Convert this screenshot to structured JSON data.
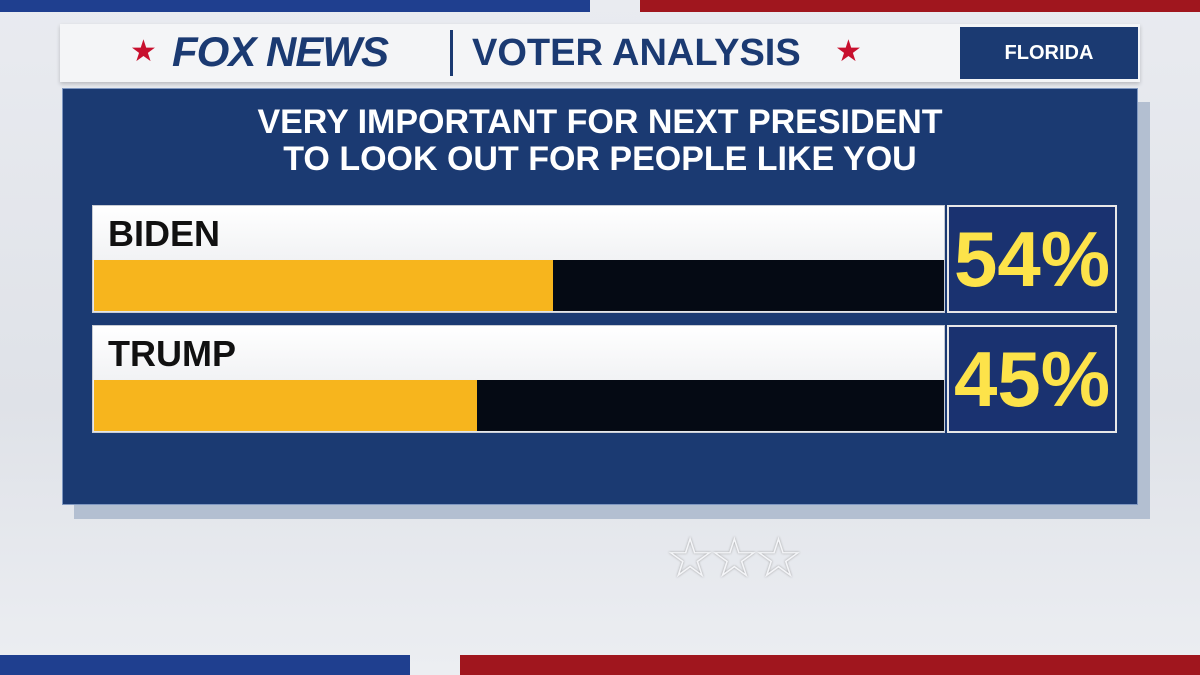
{
  "chart_data": {
    "type": "bar",
    "orientation": "horizontal",
    "network": "FOX NEWS",
    "subtitle": "VOTER ANALYSIS",
    "region": "FLORIDA",
    "title": "VERY IMPORTANT FOR NEXT PRESIDENT TO LOOK OUT FOR PEOPLE LIKE YOU",
    "categories": [
      "BIDEN",
      "TRUMP"
    ],
    "values": [
      54,
      45
    ],
    "value_labels": [
      "54%",
      "45%"
    ],
    "color": "#f7b51d",
    "xlim": [
      0,
      100
    ]
  }
}
